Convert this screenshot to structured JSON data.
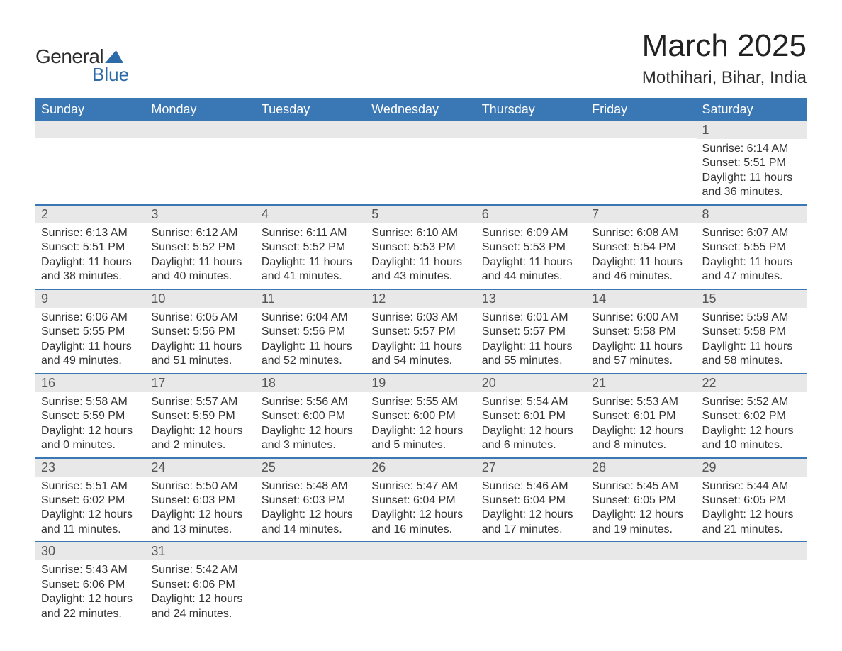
{
  "brand": {
    "main": "General",
    "sub": "Blue"
  },
  "title": "March 2025",
  "location": "Mothihari, Bihar, India",
  "colors": {
    "header_bg": "#3a77b5",
    "header_text": "#ffffff",
    "daynum_bg": "#e8e8e8",
    "row_border": "#3a77b5",
    "text": "#333333",
    "logo_accent": "#2d6aa8"
  },
  "fonts": {
    "title_size_pt": 33,
    "location_size_pt": 18,
    "weekday_size_pt": 14,
    "daynum_size_pt": 14,
    "body_size_pt": 12
  },
  "weekdays": [
    "Sunday",
    "Monday",
    "Tuesday",
    "Wednesday",
    "Thursday",
    "Friday",
    "Saturday"
  ],
  "weeks": [
    [
      {
        "day": "",
        "lines": [
          "",
          "",
          "",
          ""
        ]
      },
      {
        "day": "",
        "lines": [
          "",
          "",
          "",
          ""
        ]
      },
      {
        "day": "",
        "lines": [
          "",
          "",
          "",
          ""
        ]
      },
      {
        "day": "",
        "lines": [
          "",
          "",
          "",
          ""
        ]
      },
      {
        "day": "",
        "lines": [
          "",
          "",
          "",
          ""
        ]
      },
      {
        "day": "",
        "lines": [
          "",
          "",
          "",
          ""
        ]
      },
      {
        "day": "1",
        "lines": [
          "Sunrise: 6:14 AM",
          "Sunset: 5:51 PM",
          "Daylight: 11 hours",
          "and 36 minutes."
        ]
      }
    ],
    [
      {
        "day": "2",
        "lines": [
          "Sunrise: 6:13 AM",
          "Sunset: 5:51 PM",
          "Daylight: 11 hours",
          "and 38 minutes."
        ]
      },
      {
        "day": "3",
        "lines": [
          "Sunrise: 6:12 AM",
          "Sunset: 5:52 PM",
          "Daylight: 11 hours",
          "and 40 minutes."
        ]
      },
      {
        "day": "4",
        "lines": [
          "Sunrise: 6:11 AM",
          "Sunset: 5:52 PM",
          "Daylight: 11 hours",
          "and 41 minutes."
        ]
      },
      {
        "day": "5",
        "lines": [
          "Sunrise: 6:10 AM",
          "Sunset: 5:53 PM",
          "Daylight: 11 hours",
          "and 43 minutes."
        ]
      },
      {
        "day": "6",
        "lines": [
          "Sunrise: 6:09 AM",
          "Sunset: 5:53 PM",
          "Daylight: 11 hours",
          "and 44 minutes."
        ]
      },
      {
        "day": "7",
        "lines": [
          "Sunrise: 6:08 AM",
          "Sunset: 5:54 PM",
          "Daylight: 11 hours",
          "and 46 minutes."
        ]
      },
      {
        "day": "8",
        "lines": [
          "Sunrise: 6:07 AM",
          "Sunset: 5:55 PM",
          "Daylight: 11 hours",
          "and 47 minutes."
        ]
      }
    ],
    [
      {
        "day": "9",
        "lines": [
          "Sunrise: 6:06 AM",
          "Sunset: 5:55 PM",
          "Daylight: 11 hours",
          "and 49 minutes."
        ]
      },
      {
        "day": "10",
        "lines": [
          "Sunrise: 6:05 AM",
          "Sunset: 5:56 PM",
          "Daylight: 11 hours",
          "and 51 minutes."
        ]
      },
      {
        "day": "11",
        "lines": [
          "Sunrise: 6:04 AM",
          "Sunset: 5:56 PM",
          "Daylight: 11 hours",
          "and 52 minutes."
        ]
      },
      {
        "day": "12",
        "lines": [
          "Sunrise: 6:03 AM",
          "Sunset: 5:57 PM",
          "Daylight: 11 hours",
          "and 54 minutes."
        ]
      },
      {
        "day": "13",
        "lines": [
          "Sunrise: 6:01 AM",
          "Sunset: 5:57 PM",
          "Daylight: 11 hours",
          "and 55 minutes."
        ]
      },
      {
        "day": "14",
        "lines": [
          "Sunrise: 6:00 AM",
          "Sunset: 5:58 PM",
          "Daylight: 11 hours",
          "and 57 minutes."
        ]
      },
      {
        "day": "15",
        "lines": [
          "Sunrise: 5:59 AM",
          "Sunset: 5:58 PM",
          "Daylight: 11 hours",
          "and 58 minutes."
        ]
      }
    ],
    [
      {
        "day": "16",
        "lines": [
          "Sunrise: 5:58 AM",
          "Sunset: 5:59 PM",
          "Daylight: 12 hours",
          "and 0 minutes."
        ]
      },
      {
        "day": "17",
        "lines": [
          "Sunrise: 5:57 AM",
          "Sunset: 5:59 PM",
          "Daylight: 12 hours",
          "and 2 minutes."
        ]
      },
      {
        "day": "18",
        "lines": [
          "Sunrise: 5:56 AM",
          "Sunset: 6:00 PM",
          "Daylight: 12 hours",
          "and 3 minutes."
        ]
      },
      {
        "day": "19",
        "lines": [
          "Sunrise: 5:55 AM",
          "Sunset: 6:00 PM",
          "Daylight: 12 hours",
          "and 5 minutes."
        ]
      },
      {
        "day": "20",
        "lines": [
          "Sunrise: 5:54 AM",
          "Sunset: 6:01 PM",
          "Daylight: 12 hours",
          "and 6 minutes."
        ]
      },
      {
        "day": "21",
        "lines": [
          "Sunrise: 5:53 AM",
          "Sunset: 6:01 PM",
          "Daylight: 12 hours",
          "and 8 minutes."
        ]
      },
      {
        "day": "22",
        "lines": [
          "Sunrise: 5:52 AM",
          "Sunset: 6:02 PM",
          "Daylight: 12 hours",
          "and 10 minutes."
        ]
      }
    ],
    [
      {
        "day": "23",
        "lines": [
          "Sunrise: 5:51 AM",
          "Sunset: 6:02 PM",
          "Daylight: 12 hours",
          "and 11 minutes."
        ]
      },
      {
        "day": "24",
        "lines": [
          "Sunrise: 5:50 AM",
          "Sunset: 6:03 PM",
          "Daylight: 12 hours",
          "and 13 minutes."
        ]
      },
      {
        "day": "25",
        "lines": [
          "Sunrise: 5:48 AM",
          "Sunset: 6:03 PM",
          "Daylight: 12 hours",
          "and 14 minutes."
        ]
      },
      {
        "day": "26",
        "lines": [
          "Sunrise: 5:47 AM",
          "Sunset: 6:04 PM",
          "Daylight: 12 hours",
          "and 16 minutes."
        ]
      },
      {
        "day": "27",
        "lines": [
          "Sunrise: 5:46 AM",
          "Sunset: 6:04 PM",
          "Daylight: 12 hours",
          "and 17 minutes."
        ]
      },
      {
        "day": "28",
        "lines": [
          "Sunrise: 5:45 AM",
          "Sunset: 6:05 PM",
          "Daylight: 12 hours",
          "and 19 minutes."
        ]
      },
      {
        "day": "29",
        "lines": [
          "Sunrise: 5:44 AM",
          "Sunset: 6:05 PM",
          "Daylight: 12 hours",
          "and 21 minutes."
        ]
      }
    ],
    [
      {
        "day": "30",
        "lines": [
          "Sunrise: 5:43 AM",
          "Sunset: 6:06 PM",
          "Daylight: 12 hours",
          "and 22 minutes."
        ]
      },
      {
        "day": "31",
        "lines": [
          "Sunrise: 5:42 AM",
          "Sunset: 6:06 PM",
          "Daylight: 12 hours",
          "and 24 minutes."
        ]
      },
      {
        "day": "",
        "lines": [
          "",
          "",
          "",
          ""
        ]
      },
      {
        "day": "",
        "lines": [
          "",
          "",
          "",
          ""
        ]
      },
      {
        "day": "",
        "lines": [
          "",
          "",
          "",
          ""
        ]
      },
      {
        "day": "",
        "lines": [
          "",
          "",
          "",
          ""
        ]
      },
      {
        "day": "",
        "lines": [
          "",
          "",
          "",
          ""
        ]
      }
    ]
  ]
}
